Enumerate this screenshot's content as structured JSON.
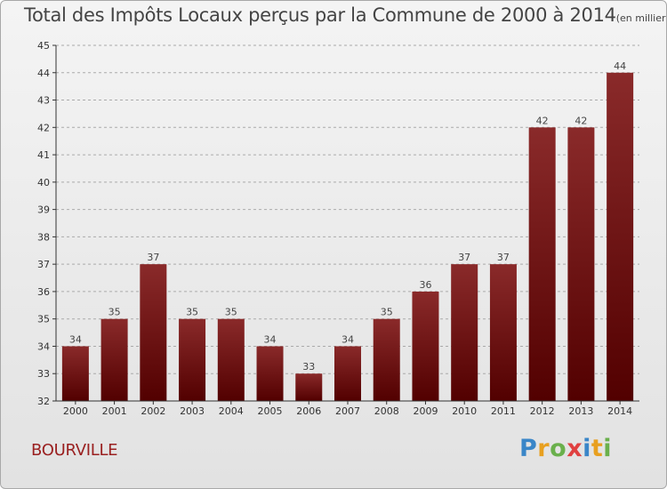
{
  "chart_data": {
    "type": "bar",
    "title": "Total des Impôts Locaux perçus par la Commune de 2000 à 2014",
    "unit_label": "(en milliers d'€)",
    "categories": [
      "2000",
      "2001",
      "2002",
      "2003",
      "2004",
      "2005",
      "2006",
      "2007",
      "2008",
      "2009",
      "2010",
      "2011",
      "2012",
      "2013",
      "2014"
    ],
    "values": [
      34,
      35,
      37,
      35,
      35,
      34,
      33,
      34,
      35,
      36,
      37,
      37,
      42,
      42,
      44
    ],
    "ylim": [
      32,
      45
    ],
    "yticks": [
      32,
      33,
      34,
      35,
      36,
      37,
      38,
      39,
      40,
      41,
      42,
      43,
      44,
      45
    ],
    "xlabel": "",
    "ylabel": "",
    "grid": "horizontal dashed",
    "bar_color": "#7a1515"
  },
  "commune": "BOURVILLE",
  "logo": {
    "letters": [
      "P",
      "r",
      "o",
      "x",
      "i",
      "t",
      "i"
    ],
    "colors": [
      "#3a86c8",
      "#e8a020",
      "#6ab04c",
      "#e04040",
      "#3a86c8",
      "#e8a020",
      "#6ab04c"
    ]
  }
}
